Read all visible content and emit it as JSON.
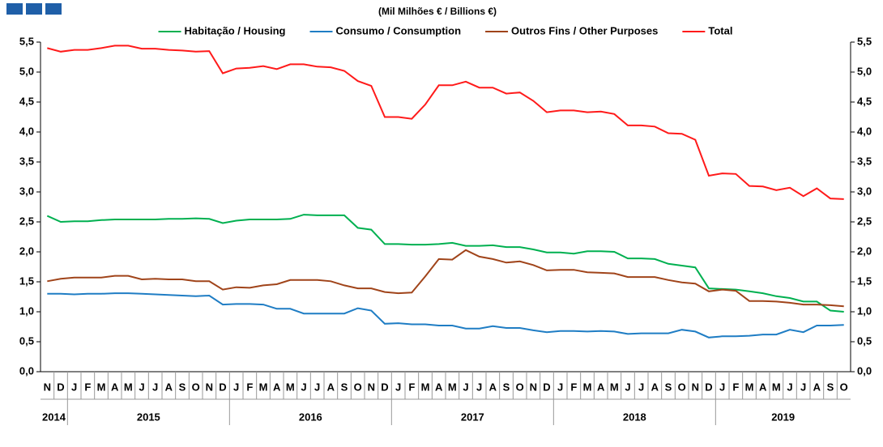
{
  "chart_data": {
    "type": "line",
    "subtitle": "(Mil Milhões € / Billions €)",
    "categories": [
      "N",
      "D",
      "J",
      "F",
      "M",
      "A",
      "M",
      "J",
      "J",
      "A",
      "S",
      "O",
      "N",
      "D",
      "J",
      "F",
      "M",
      "A",
      "M",
      "J",
      "J",
      "A",
      "S",
      "O",
      "N",
      "D",
      "J",
      "F",
      "M",
      "A",
      "M",
      "J",
      "J",
      "A",
      "S",
      "O",
      "N",
      "D",
      "J",
      "F",
      "M",
      "A",
      "M",
      "J",
      "J",
      "A",
      "S",
      "O",
      "N",
      "D",
      "J",
      "F",
      "M",
      "A",
      "M",
      "J",
      "J",
      "A",
      "S",
      "O"
    ],
    "years": [
      "2014",
      "2015",
      "2016",
      "2017",
      "2018",
      "2019"
    ],
    "ylim": [
      0,
      5.5
    ],
    "yticks": [
      {
        "value": 0,
        "label": "0,0"
      },
      {
        "value": 0.5,
        "label": "0,5"
      },
      {
        "value": 1,
        "label": "1,0"
      },
      {
        "value": 1.5,
        "label": "1,5"
      },
      {
        "value": 2,
        "label": "2,0"
      },
      {
        "value": 2.5,
        "label": "2,5"
      },
      {
        "value": 3,
        "label": "3,0"
      },
      {
        "value": 3.5,
        "label": "3,5"
      },
      {
        "value": 4,
        "label": "4,0"
      },
      {
        "value": 4.5,
        "label": "4,5"
      },
      {
        "value": 5,
        "label": "5,0"
      },
      {
        "value": 5.5,
        "label": "5,5"
      }
    ],
    "grid": false,
    "legend": "top",
    "series": [
      {
        "name": "Habitação / Housing",
        "color": "#00b050",
        "values": [
          2.6,
          2.5,
          2.51,
          2.51,
          2.53,
          2.54,
          2.54,
          2.54,
          2.54,
          2.55,
          2.55,
          2.56,
          2.55,
          2.48,
          2.52,
          2.54,
          2.54,
          2.54,
          2.55,
          2.62,
          2.61,
          2.61,
          2.61,
          2.4,
          2.37,
          2.13,
          2.13,
          2.12,
          2.12,
          2.13,
          2.15,
          2.1,
          2.1,
          2.11,
          2.08,
          2.08,
          2.04,
          1.99,
          1.99,
          1.97,
          2.01,
          2.01,
          2.0,
          1.89,
          1.89,
          1.88,
          1.8,
          1.77,
          1.74,
          1.39,
          1.38,
          1.37,
          1.34,
          1.31,
          1.26,
          1.23,
          1.17,
          1.17,
          1.02,
          1.0
        ]
      },
      {
        "name": "Consumo / Consumption",
        "color": "#1f7dc4",
        "values": [
          1.3,
          1.3,
          1.29,
          1.3,
          1.3,
          1.31,
          1.31,
          1.3,
          1.29,
          1.28,
          1.27,
          1.26,
          1.27,
          1.12,
          1.13,
          1.13,
          1.12,
          1.05,
          1.05,
          0.97,
          0.97,
          0.97,
          0.97,
          1.06,
          1.02,
          0.8,
          0.81,
          0.79,
          0.79,
          0.77,
          0.77,
          0.72,
          0.72,
          0.76,
          0.73,
          0.73,
          0.69,
          0.66,
          0.68,
          0.68,
          0.67,
          0.68,
          0.67,
          0.63,
          0.64,
          0.64,
          0.64,
          0.7,
          0.67,
          0.57,
          0.59,
          0.59,
          0.6,
          0.62,
          0.62,
          0.7,
          0.66,
          0.77,
          0.77,
          0.78
        ]
      },
      {
        "name": "Outros Fins / Other Purposes",
        "color": "#a0441a",
        "values": [
          1.51,
          1.55,
          1.57,
          1.57,
          1.57,
          1.6,
          1.6,
          1.54,
          1.55,
          1.54,
          1.54,
          1.51,
          1.51,
          1.37,
          1.41,
          1.4,
          1.44,
          1.46,
          1.53,
          1.53,
          1.53,
          1.51,
          1.44,
          1.39,
          1.39,
          1.33,
          1.31,
          1.32,
          1.59,
          1.88,
          1.87,
          2.03,
          1.92,
          1.88,
          1.82,
          1.84,
          1.78,
          1.69,
          1.7,
          1.7,
          1.66,
          1.65,
          1.64,
          1.58,
          1.58,
          1.58,
          1.53,
          1.49,
          1.47,
          1.34,
          1.37,
          1.35,
          1.18,
          1.18,
          1.17,
          1.15,
          1.12,
          1.12,
          1.11,
          1.09
        ]
      },
      {
        "name": "Total",
        "color": "#ff1a1a",
        "values": [
          5.4,
          5.34,
          5.37,
          5.37,
          5.4,
          5.44,
          5.44,
          5.39,
          5.39,
          5.37,
          5.36,
          5.34,
          5.35,
          4.98,
          5.06,
          5.07,
          5.1,
          5.05,
          5.13,
          5.13,
          5.09,
          5.08,
          5.02,
          4.85,
          4.77,
          4.25,
          4.25,
          4.22,
          4.46,
          4.78,
          4.78,
          4.84,
          4.74,
          4.74,
          4.64,
          4.66,
          4.52,
          4.33,
          4.36,
          4.36,
          4.33,
          4.34,
          4.3,
          4.11,
          4.11,
          4.09,
          3.98,
          3.97,
          3.87,
          3.27,
          3.31,
          3.3,
          3.1,
          3.09,
          3.03,
          3.07,
          2.93,
          3.06,
          2.89,
          2.88
        ]
      }
    ]
  }
}
